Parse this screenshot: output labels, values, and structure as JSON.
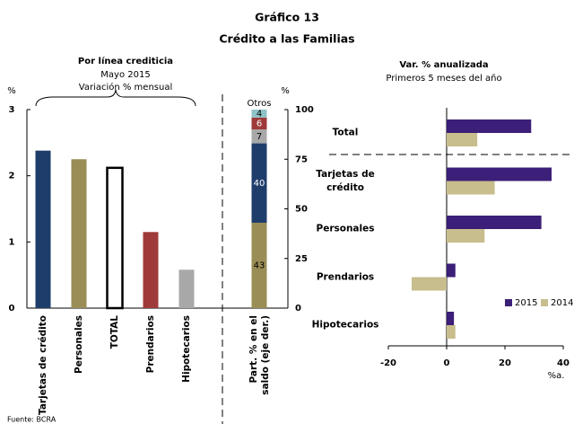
{
  "figure": {
    "number": "Gráfico 13",
    "title": "Crédito a las Familias",
    "source": "Fuente: BCRA"
  },
  "chart_data": [
    {
      "type": "bar",
      "title": "Por línea crediticia",
      "subtitle": "Mayo 2015",
      "note": "Variación % mensual",
      "y_label": "%",
      "categories": [
        "Tarjetas de crédito",
        "Personales",
        "TOTAL",
        "Prendarios",
        "Hipotecarios"
      ],
      "values": [
        2.38,
        2.25,
        2.12,
        1.15,
        0.58
      ],
      "colors": [
        "#1f3d6b",
        "#9a8d55",
        "#ffffff",
        "#9e3a3a",
        "#a8a8a8"
      ],
      "outlined": [
        false,
        false,
        true,
        false,
        false
      ],
      "ylim": [
        0,
        3
      ],
      "yticks": [
        0,
        1,
        2,
        3
      ],
      "stack": {
        "category": [
          "Part. % en el",
          "saldo (eje der.)"
        ],
        "values": [
          43,
          40,
          7,
          6,
          4
        ],
        "colors": [
          "#9a8d55",
          "#1f3d6b",
          "#a8a8a8",
          "#9e3a3a",
          "#8fc3c8"
        ],
        "other_label": "Otros",
        "y2_label": "%",
        "y2lim": [
          0,
          100
        ],
        "y2ticks": [
          0,
          25,
          50,
          75,
          100
        ]
      }
    },
    {
      "type": "hbar",
      "title": "Var. % anualizada",
      "subtitle": "Primeros 5 meses del año",
      "x_label": "%a.",
      "categories": [
        "Total",
        "Tarjetas de crédito",
        "Personales",
        "Prendarios",
        "Hipotecarios"
      ],
      "series": [
        {
          "name": "2015",
          "color": "#3b1f78",
          "values": [
            29,
            36,
            32.5,
            3,
            2.5
          ]
        },
        {
          "name": "2014",
          "color": "#c8bd8c",
          "values": [
            10.5,
            16.5,
            13,
            -12,
            3
          ]
        }
      ],
      "xlim": [
        -20,
        40
      ],
      "xticks": [
        -20,
        0,
        20,
        40
      ],
      "legend": "lower right"
    }
  ]
}
